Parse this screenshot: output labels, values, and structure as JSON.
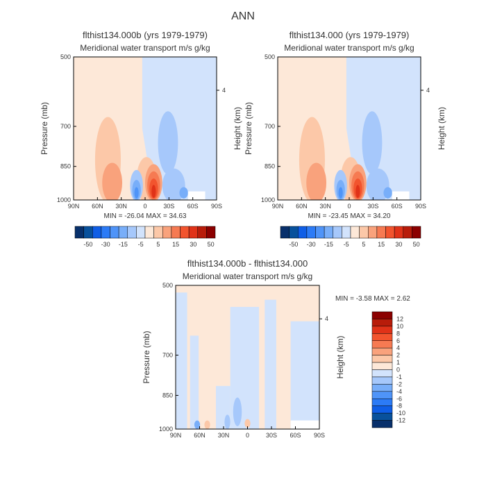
{
  "figure_title": "ANN",
  "colors": {
    "text": "#333333",
    "frame": "#000000",
    "no_data": "#ffffff"
  },
  "chart_data": [
    {
      "type": "heatmap",
      "title": "flthist134.000b (yrs 1979-1979)",
      "subtitle": "Meridional water transport m/s g/kg",
      "xlabel": "",
      "ylabel": "Pressure (mb)",
      "y2label": "Height (km)",
      "x_ticks": [
        "90N",
        "60N",
        "30N",
        "0",
        "30S",
        "60S",
        "90S"
      ],
      "y_ticks": [
        "500",
        "700",
        "850",
        "1000"
      ],
      "y2_ticks": [
        "4"
      ],
      "xlim": [
        "90N",
        "90S"
      ],
      "ylim": [
        1000,
        500
      ],
      "stats": "MIN = -26.04   MAX = 34.63",
      "colorbar": {
        "labels": [
          "-50",
          "-30",
          "-15",
          "-5",
          "5",
          "15",
          "30",
          "50"
        ],
        "colors": [
          "#08306b",
          "#08519c",
          "#0f5ee6",
          "#2c7bf6",
          "#4f94f8",
          "#78aef9",
          "#a6c8fb",
          "#d2e3fc",
          "#fde8d8",
          "#fcc8a8",
          "#f9a27c",
          "#f67a52",
          "#f2542e",
          "#e03218",
          "#b81c0a",
          "#8b0000"
        ]
      }
    },
    {
      "type": "heatmap",
      "title": "flthist134.000 (yrs 1979-1979)",
      "subtitle": "Meridional water transport m/s g/kg",
      "xlabel": "",
      "ylabel": "Pressure (mb)",
      "y2label": "Height (km)",
      "x_ticks": [
        "90N",
        "60N",
        "30N",
        "0",
        "30S",
        "60S",
        "90S"
      ],
      "y_ticks": [
        "500",
        "700",
        "850",
        "1000"
      ],
      "y2_ticks": [
        "4"
      ],
      "xlim": [
        "90N",
        "90S"
      ],
      "ylim": [
        1000,
        500
      ],
      "stats": "MIN = -23.45   MAX = 34.20",
      "colorbar": {
        "labels": [
          "-50",
          "-30",
          "-15",
          "-5",
          "5",
          "15",
          "30",
          "50"
        ],
        "colors": [
          "#08306b",
          "#08519c",
          "#0f5ee6",
          "#2c7bf6",
          "#4f94f8",
          "#78aef9",
          "#a6c8fb",
          "#d2e3fc",
          "#fde8d8",
          "#fcc8a8",
          "#f9a27c",
          "#f67a52",
          "#f2542e",
          "#e03218",
          "#b81c0a",
          "#8b0000"
        ]
      }
    },
    {
      "type": "heatmap",
      "title": "flthist134.000b - flthist134.000",
      "subtitle": "Meridional water transport m/s g/kg",
      "xlabel": "",
      "ylabel": "Pressure (mb)",
      "y2label": "Height (km)",
      "x_ticks": [
        "90N",
        "60N",
        "30N",
        "0",
        "30S",
        "60S",
        "90S"
      ],
      "y_ticks": [
        "500",
        "700",
        "850",
        "1000"
      ],
      "y2_ticks": [
        "4"
      ],
      "xlim": [
        "90N",
        "90S"
      ],
      "ylim": [
        1000,
        500
      ],
      "stats": "MIN =   -3.58   MAX =    2.62",
      "colorbar": {
        "labels": [
          "12",
          "10",
          "8",
          "6",
          "4",
          "2",
          "1",
          "0",
          "-1",
          "-2",
          "-4",
          "-6",
          "-8",
          "-10",
          "-12"
        ],
        "colors": [
          "#8b0000",
          "#b81c0a",
          "#e03218",
          "#f2542e",
          "#f67a52",
          "#f9a27c",
          "#fcc8a8",
          "#fde8d8",
          "#d2e3fc",
          "#a6c8fb",
          "#78aef9",
          "#4f94f8",
          "#2c7bf6",
          "#0f5ee6",
          "#08519c",
          "#08306b"
        ]
      }
    }
  ]
}
